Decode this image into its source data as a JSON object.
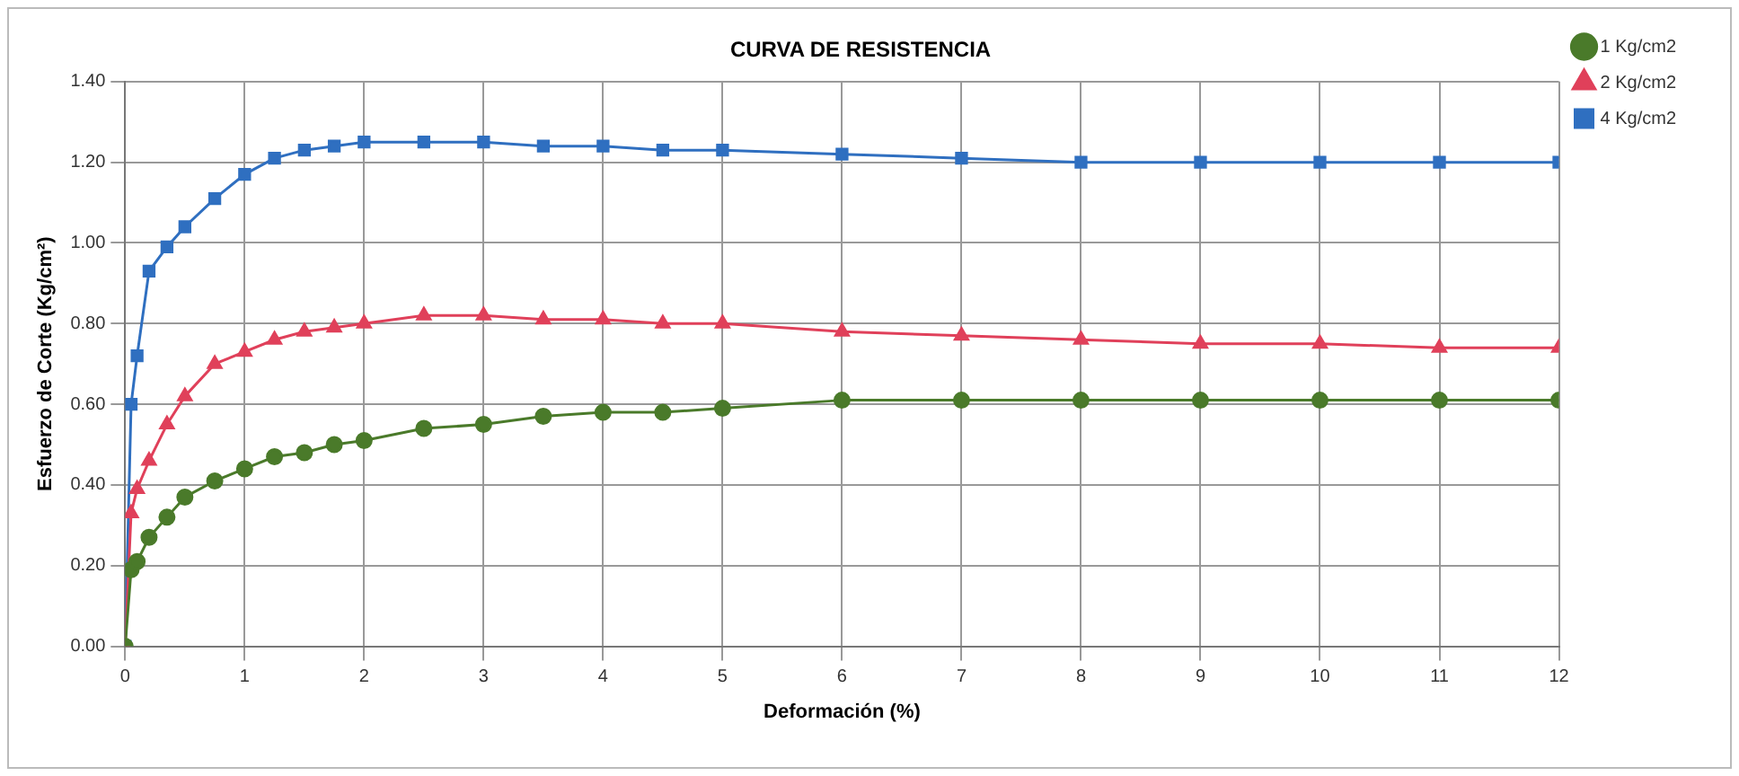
{
  "chart_data": {
    "type": "line",
    "title": "CURVA DE RESISTENCIA",
    "xlabel": "Deformación (%)",
    "ylabel": "Esfuerzo de Corte (Kg/cm²)",
    "x": [
      0,
      0.05,
      0.1,
      0.2,
      0.35,
      0.5,
      0.75,
      1,
      1.25,
      1.5,
      1.75,
      2,
      2.5,
      3,
      3.5,
      4,
      4.5,
      5,
      6,
      7,
      8,
      9,
      10,
      11,
      12
    ],
    "series": [
      {
        "name": "1 Kg/cm2",
        "color": "#4a7a2a",
        "marker": "circle",
        "values": [
          0,
          0.19,
          0.21,
          0.27,
          0.32,
          0.37,
          0.41,
          0.44,
          0.47,
          0.48,
          0.5,
          0.51,
          0.54,
          0.55,
          0.57,
          0.58,
          0.58,
          0.59,
          0.61,
          0.61,
          0.61,
          0.61,
          0.61,
          0.61,
          0.61
        ]
      },
      {
        "name": "2 Kg/cm2",
        "color": "#e0405a",
        "marker": "triangle",
        "values": [
          0,
          0.33,
          0.39,
          0.46,
          0.55,
          0.62,
          0.7,
          0.73,
          0.76,
          0.78,
          0.79,
          0.8,
          0.82,
          0.82,
          0.81,
          0.81,
          0.8,
          0.8,
          0.78,
          0.77,
          0.76,
          0.75,
          0.75,
          0.74,
          0.74
        ]
      },
      {
        "name": "4 Kg/cm2",
        "color": "#2f6fc0",
        "marker": "square",
        "values": [
          0,
          0.6,
          0.72,
          0.93,
          0.99,
          1.04,
          1.11,
          1.17,
          1.21,
          1.23,
          1.24,
          1.25,
          1.25,
          1.25,
          1.24,
          1.24,
          1.23,
          1.23,
          1.22,
          1.21,
          1.2,
          1.2,
          1.2,
          1.2,
          1.2
        ]
      }
    ],
    "xlim": [
      0,
      12
    ],
    "xticks": [
      0,
      1,
      2,
      3,
      4,
      5,
      6,
      7,
      8,
      9,
      10,
      11,
      12
    ],
    "ylim": [
      0,
      1.4
    ],
    "yticks": [
      {
        "value": 0,
        "label": "0.00"
      },
      {
        "value": 0.2,
        "label": "0.20"
      },
      {
        "value": 0.4,
        "label": "0.40"
      },
      {
        "value": 0.6,
        "label": "0.60"
      },
      {
        "value": 0.8,
        "label": "0.80"
      },
      {
        "value": 1,
        "label": "1.00"
      },
      {
        "value": 1.2,
        "label": "1.20"
      },
      {
        "value": 1.4,
        "label": "1.40"
      }
    ],
    "grid": true,
    "legend": "top right",
    "line_style": "solid"
  }
}
